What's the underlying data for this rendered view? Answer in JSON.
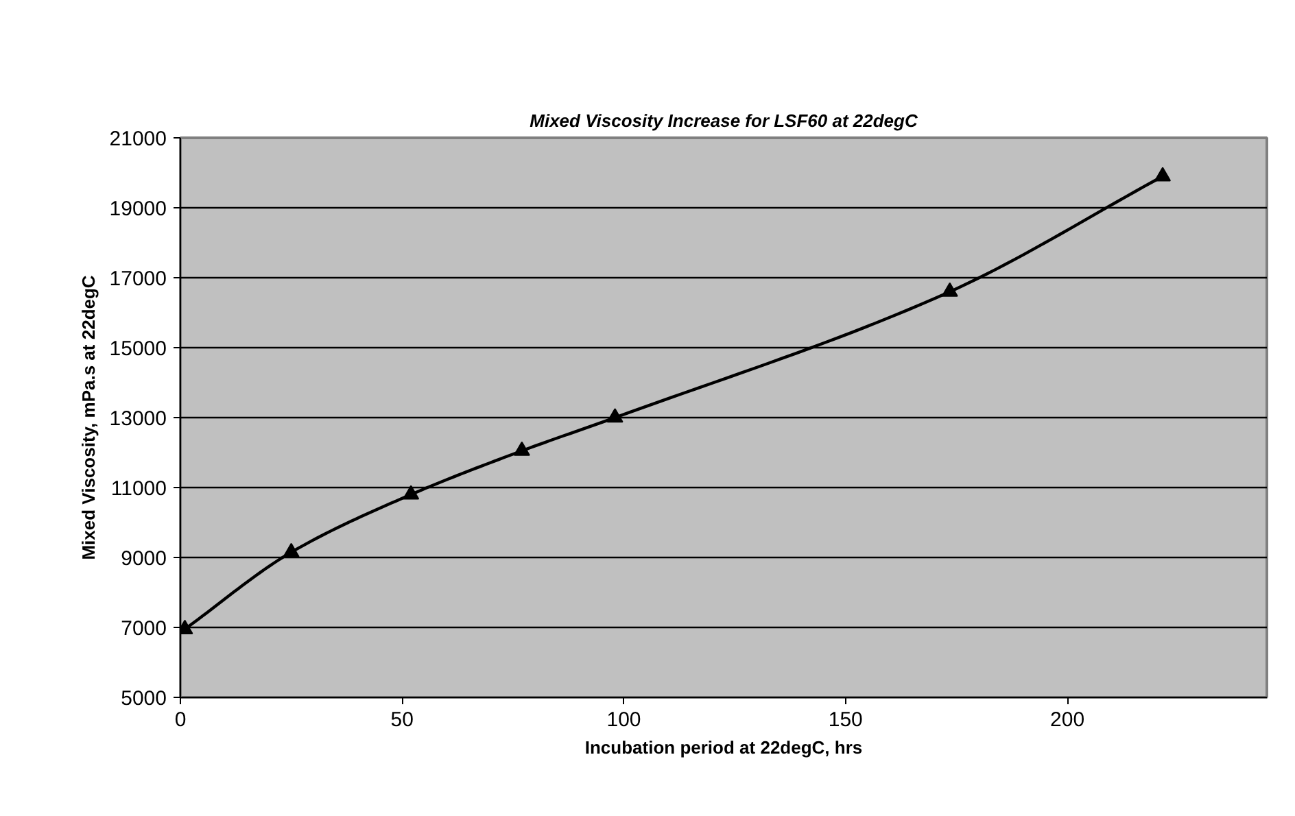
{
  "chart_data": {
    "type": "line",
    "title": "Mixed Viscosity Increase for LSF60 at 22degC",
    "xlabel": "Incubation period at 22degC, hrs",
    "ylabel": "Mixed Viscosity, mPa.s at 22degC",
    "x": [
      1,
      25,
      52,
      77,
      98,
      173.5,
      221.5
    ],
    "series": [
      {
        "color": "#000000",
        "values": [
          6950,
          9150,
          10800,
          12050,
          13000,
          16600,
          19900
        ]
      }
    ],
    "xlim": [
      0,
      245
    ],
    "xticks": [
      0,
      50,
      100,
      150,
      200
    ],
    "ylim": [
      5000,
      21000
    ],
    "yticks": [
      5000,
      7000,
      9000,
      11000,
      13000,
      15000,
      17000,
      19000,
      21000
    ],
    "grid": "y",
    "marker": "triangle",
    "line_style": "solid"
  }
}
